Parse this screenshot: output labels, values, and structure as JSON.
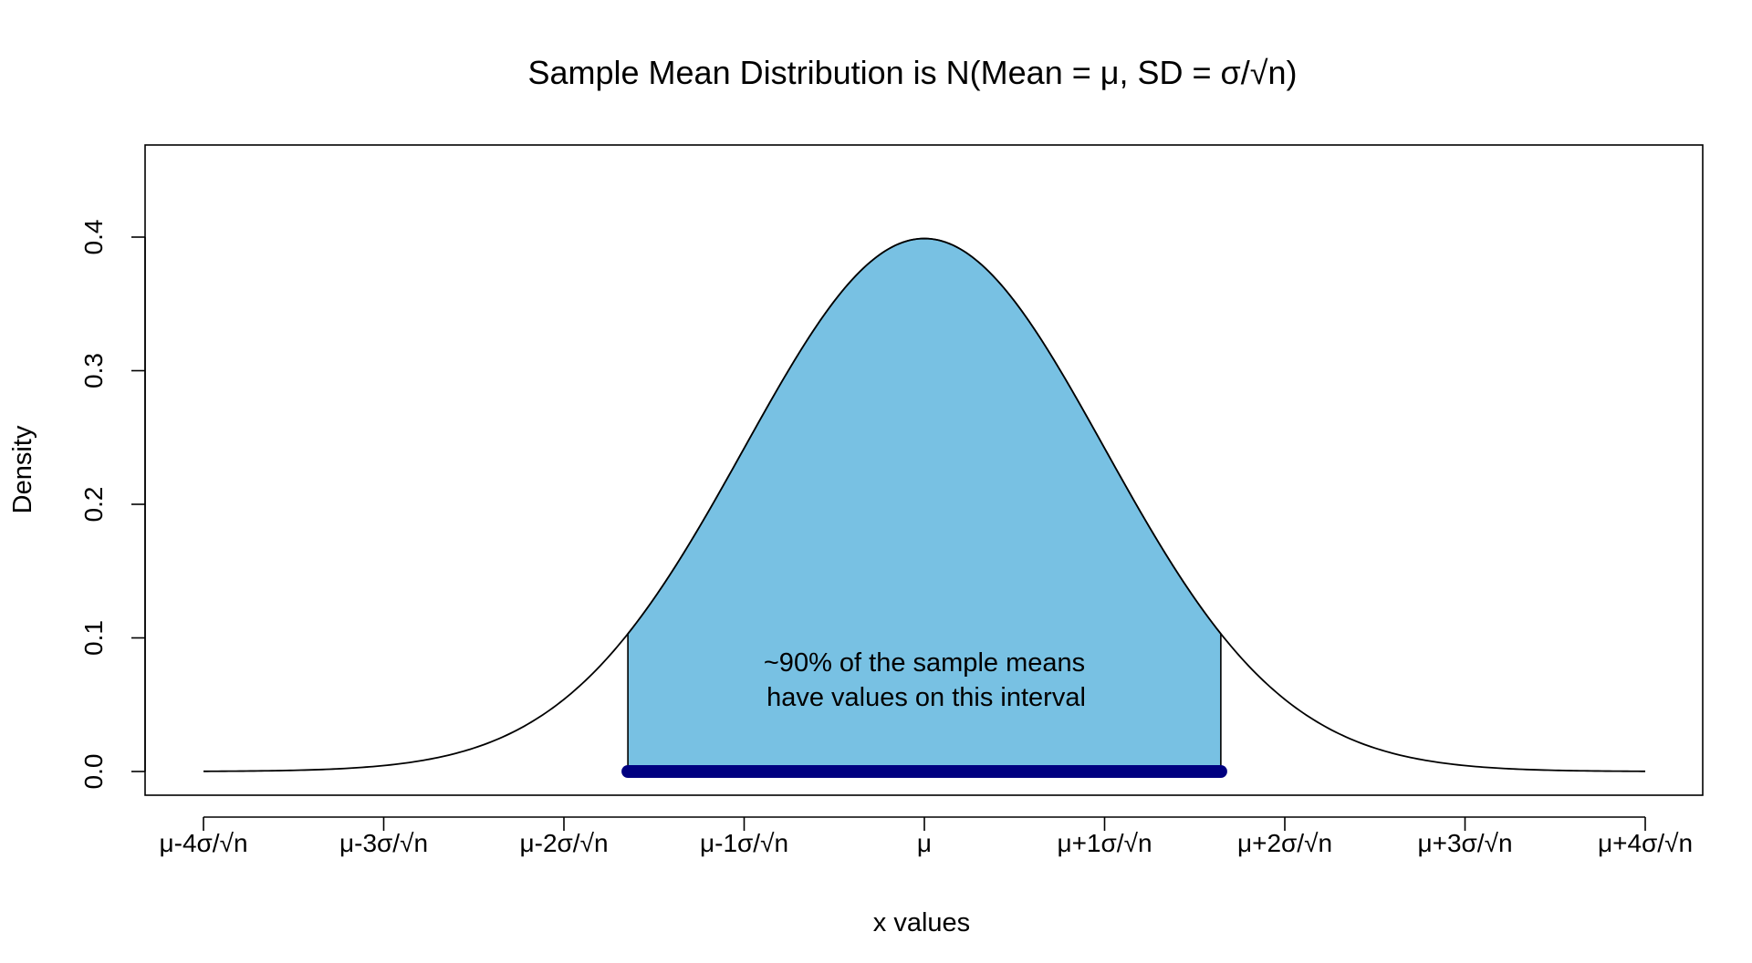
{
  "chart_data": {
    "type": "area",
    "title": "Sample Mean Distribution is N(Mean = μ, SD = σ/√n)",
    "xlabel": "x values",
    "ylabel": "Density",
    "xlim": [
      -4,
      4
    ],
    "ylim": [
      0,
      0.45
    ],
    "x_ticks": [
      -4,
      -3,
      -2,
      -1,
      0,
      1,
      2,
      3,
      4
    ],
    "x_tick_labels": [
      "μ-4σ/√n",
      "μ-3σ/√n",
      "μ-2σ/√n",
      "μ-1σ/√n",
      "μ",
      "μ+1σ/√n",
      "μ+2σ/√n",
      "μ+3σ/√n",
      "μ+4σ/√n"
    ],
    "y_ticks": [
      0.0,
      0.1,
      0.2,
      0.3,
      0.4
    ],
    "y_tick_labels": [
      "0.0",
      "0.1",
      "0.2",
      "0.3",
      "0.4"
    ],
    "curve": {
      "distribution": "standard normal density",
      "mean": 0,
      "sd": 1,
      "x_range": [
        -4,
        4
      ],
      "line_color": "#000000"
    },
    "shaded_interval": {
      "from": -1.645,
      "to": 1.645,
      "fill_color": "#78c1e3",
      "bar_color": "#000080"
    },
    "annotation": {
      "line1": "~90% of the sample means",
      "line2": "have values on this interval",
      "color": "#000080"
    },
    "grid": false,
    "legend": "none"
  }
}
